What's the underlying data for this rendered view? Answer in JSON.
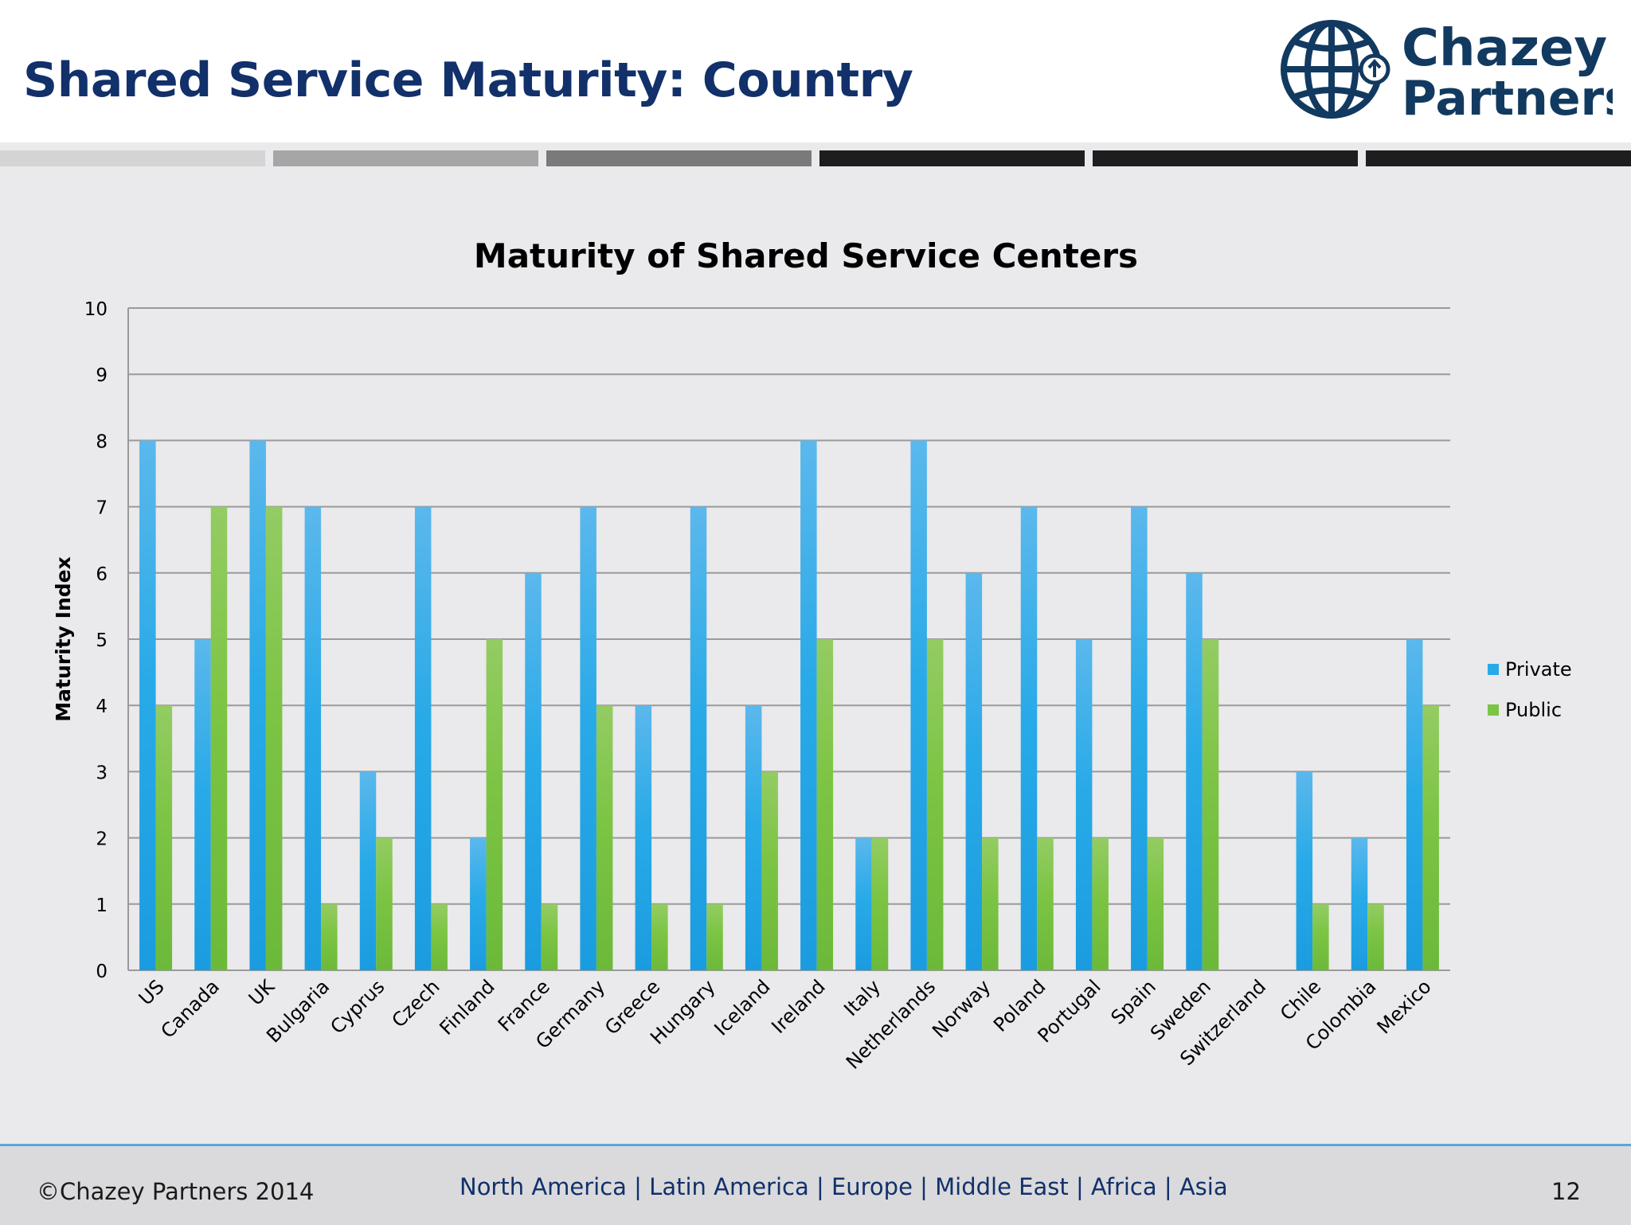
{
  "header": {
    "title": "Shared Service Maturity: Country",
    "logo_text_line1": "Chazey",
    "logo_text_line2": "Partners",
    "logo_icon": "globe-with-up-arrow-icon",
    "title_color": "#12306a",
    "divider_colors": [
      "#d4d4d4",
      "#a6a6a6",
      "#7a7a7a",
      "#1e1e1e",
      "#1e1e1e",
      "#1e1e1e"
    ]
  },
  "chart_data": {
    "type": "bar",
    "title": "Maturity of Shared Service Centers",
    "xlabel": "",
    "ylabel": "Maturity Index",
    "ylim": [
      0,
      10
    ],
    "yticks": [
      0,
      1,
      2,
      3,
      4,
      5,
      6,
      7,
      8,
      9,
      10
    ],
    "grid": true,
    "legend_position": "right",
    "categories": [
      "US",
      "Canada",
      "UK",
      "Bulgaria",
      "Cyprus",
      "Czech",
      "Finland",
      "France",
      "Germany",
      "Greece",
      "Hungary",
      "Iceland",
      "Ireland",
      "Italy",
      "Netherlands",
      "Norway",
      "Poland",
      "Portugal",
      "Spain",
      "Sweden",
      "Switzerland",
      "Chile",
      "Colombia",
      "Mexico"
    ],
    "series": [
      {
        "name": "Private",
        "color": "#29aae8",
        "values": [
          8,
          5,
          8,
          7,
          3,
          7,
          2,
          6,
          7,
          4,
          7,
          4,
          8,
          2,
          8,
          6,
          7,
          5,
          7,
          6,
          0,
          3,
          2,
          5
        ]
      },
      {
        "name": "Public",
        "color": "#7cc443",
        "values": [
          4,
          7,
          7,
          1,
          2,
          1,
          5,
          1,
          4,
          1,
          1,
          3,
          5,
          2,
          5,
          2,
          2,
          2,
          2,
          5,
          0,
          1,
          1,
          4
        ]
      }
    ]
  },
  "footer": {
    "copyright": "©Chazey Partners 2014",
    "regions": "North America | Latin America | Europe | Middle East | Africa | Asia",
    "page_number": "12"
  }
}
